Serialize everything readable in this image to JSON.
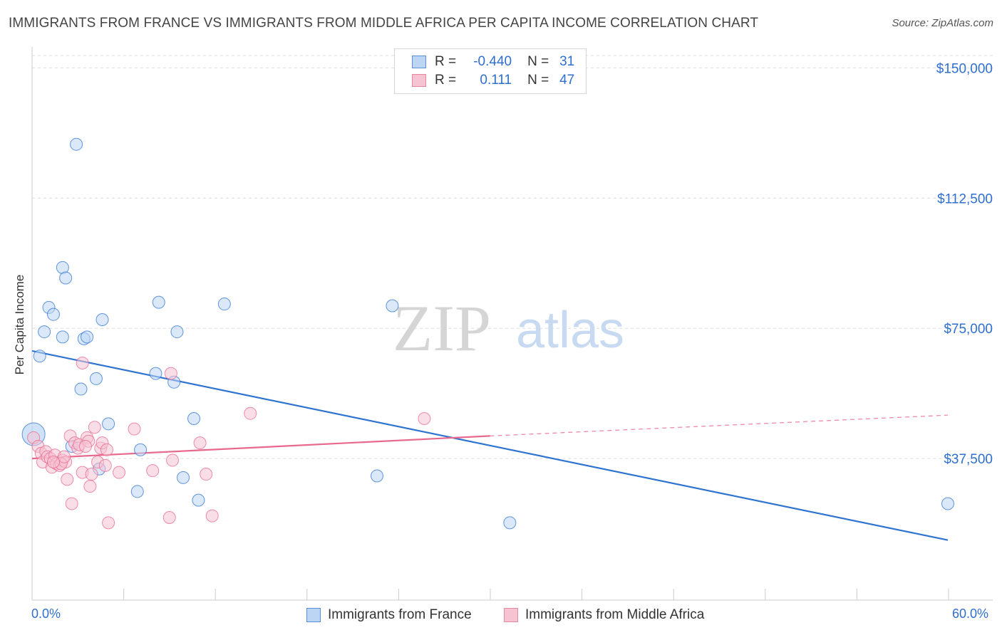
{
  "title": "IMMIGRANTS FROM FRANCE VS IMMIGRANTS FROM MIDDLE AFRICA PER CAPITA INCOME CORRELATION CHART",
  "source": "Source: ZipAtlas.com",
  "colors": {
    "blue": "#2f74d0",
    "blue_fill": "#bcd5f5",
    "pink": "#e8688e",
    "pink_fill": "#f6c3d3",
    "axis_text": "#2f6fcf"
  },
  "legend": {
    "r_label": "R =",
    "n_label": "N =",
    "rows": [
      {
        "r": "-0.440",
        "n": "31"
      },
      {
        "r": "0.111",
        "n": "47"
      }
    ]
  },
  "chart_data": {
    "type": "scatter",
    "ylabel": "Per Capita Income",
    "xlim": [
      0,
      60
    ],
    "ylim": [
      0,
      155000
    ],
    "x_ticks_labels": [
      "0.0%",
      "60.0%"
    ],
    "y_ticks": [
      37500,
      75000,
      112500,
      150000
    ],
    "y_tick_labels": [
      "$37,500",
      "$75,000",
      "$112,500",
      "$150,000"
    ],
    "series": [
      {
        "name": "Immigrants from France",
        "color": "blue",
        "points": [
          [
            0.5,
            67000
          ],
          [
            0.8,
            74000
          ],
          [
            1.1,
            81000
          ],
          [
            1.4,
            79000
          ],
          [
            2.0,
            92500
          ],
          [
            2.0,
            72500
          ],
          [
            2.2,
            89500
          ],
          [
            2.9,
            128000
          ],
          [
            3.2,
            57500
          ],
          [
            3.4,
            72000
          ],
          [
            3.6,
            72500
          ],
          [
            4.2,
            60500
          ],
          [
            4.6,
            77500
          ],
          [
            5.0,
            47500
          ],
          [
            4.4,
            34500
          ],
          [
            2.6,
            41000
          ],
          [
            6.9,
            28000
          ],
          [
            7.1,
            40000
          ],
          [
            8.1,
            62000
          ],
          [
            8.3,
            82500
          ],
          [
            9.3,
            59500
          ],
          [
            9.5,
            74000
          ],
          [
            9.9,
            32000
          ],
          [
            10.6,
            49000
          ],
          [
            10.9,
            25500
          ],
          [
            12.6,
            82000
          ],
          [
            22.6,
            32500
          ],
          [
            23.6,
            81500
          ],
          [
            31.3,
            19000
          ],
          [
            60.0,
            24500
          ],
          [
            0.1,
            44500
          ]
        ],
        "trend": {
          "x": [
            0,
            60
          ],
          "y": [
            68500,
            14000
          ]
        }
      },
      {
        "name": "Immigrants from Middle Africa",
        "color": "pink",
        "points": [
          [
            0.1,
            43500
          ],
          [
            0.4,
            41000
          ],
          [
            0.6,
            39000
          ],
          [
            0.7,
            36500
          ],
          [
            0.9,
            39500
          ],
          [
            1.0,
            38000
          ],
          [
            1.2,
            37500
          ],
          [
            1.3,
            35000
          ],
          [
            1.5,
            38500
          ],
          [
            1.6,
            36000
          ],
          [
            1.8,
            35500
          ],
          [
            2.0,
            37000
          ],
          [
            2.2,
            36500
          ],
          [
            2.3,
            31500
          ],
          [
            2.5,
            44000
          ],
          [
            2.6,
            24500
          ],
          [
            2.8,
            42000
          ],
          [
            3.0,
            40500
          ],
          [
            3.1,
            41500
          ],
          [
            3.3,
            65000
          ],
          [
            3.3,
            33500
          ],
          [
            3.6,
            43500
          ],
          [
            3.7,
            42500
          ],
          [
            3.8,
            29500
          ],
          [
            3.9,
            33000
          ],
          [
            4.1,
            46500
          ],
          [
            4.3,
            36500
          ],
          [
            4.5,
            40500
          ],
          [
            4.6,
            42000
          ],
          [
            4.8,
            35500
          ],
          [
            4.9,
            40000
          ],
          [
            5.0,
            19000
          ],
          [
            5.7,
            33500
          ],
          [
            6.7,
            46000
          ],
          [
            7.9,
            34000
          ],
          [
            9.0,
            20500
          ],
          [
            9.1,
            62000
          ],
          [
            9.2,
            37000
          ],
          [
            11.0,
            42000
          ],
          [
            11.4,
            33000
          ],
          [
            11.8,
            21000
          ],
          [
            14.3,
            50500
          ],
          [
            25.7,
            49000
          ],
          [
            1.9,
            36000
          ],
          [
            2.1,
            38000
          ],
          [
            3.5,
            41000
          ],
          [
            1.4,
            36500
          ]
        ],
        "trend": {
          "x": [
            0,
            30
          ],
          "y": [
            37500,
            44000
          ]
        },
        "trend_dashed": {
          "x": [
            30,
            60
          ],
          "y": [
            44000,
            50000
          ]
        }
      }
    ]
  },
  "bottom_legend": {
    "series_a": "Immigrants from France",
    "series_b": "Immigrants from Middle Africa"
  },
  "watermark": {
    "zip": "ZIP",
    "atlas": "atlas"
  }
}
